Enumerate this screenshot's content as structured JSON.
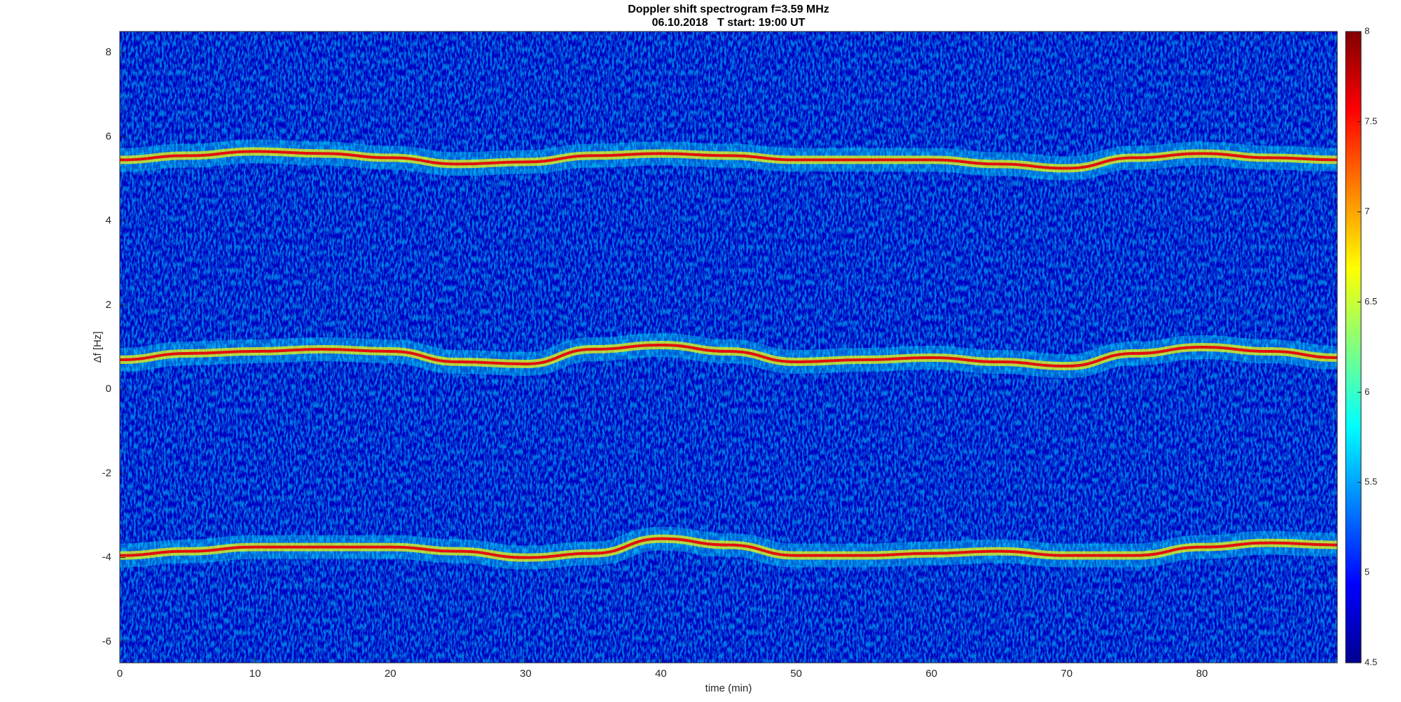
{
  "chart_data": {
    "type": "spectrogram",
    "title": "Doppler shift spectrogram f=3.59 MHz",
    "subtitle": "06.10.2018   T start: 19:00 UT",
    "x_label": "time (min)",
    "y_label": "Δf [Hz]",
    "x": [
      0,
      5,
      10,
      15,
      20,
      25,
      30,
      35,
      40,
      45,
      50,
      55,
      60,
      65,
      70,
      75,
      80,
      85,
      90
    ],
    "series": [
      {
        "color": "#e01010",
        "values": [
          5.45,
          5.55,
          5.65,
          5.6,
          5.5,
          5.35,
          5.4,
          5.55,
          5.6,
          5.55,
          5.45,
          5.45,
          5.45,
          5.35,
          5.25,
          5.5,
          5.6,
          5.5,
          5.45
        ]
      },
      {
        "color": "#e01010",
        "values": [
          0.7,
          0.85,
          0.9,
          0.95,
          0.9,
          0.65,
          0.6,
          0.95,
          1.05,
          0.9,
          0.65,
          0.7,
          0.75,
          0.65,
          0.55,
          0.85,
          1.0,
          0.9,
          0.75
        ]
      },
      {
        "color": "#e01010",
        "values": [
          -3.95,
          -3.85,
          -3.75,
          -3.75,
          -3.75,
          -3.85,
          -4.0,
          -3.9,
          -3.55,
          -3.7,
          -3.95,
          -3.95,
          -3.9,
          -3.85,
          -3.95,
          -3.95,
          -3.75,
          -3.65,
          -3.7
        ]
      }
    ],
    "xlim": [
      0,
      90
    ],
    "xticks": [
      0,
      10,
      20,
      30,
      40,
      50,
      60,
      70,
      80
    ],
    "ylim": [
      -6.5,
      8.5
    ],
    "yticks": [
      -6,
      -4,
      -2,
      0,
      2,
      4,
      6,
      8
    ],
    "colorbar": {
      "lim": [
        4.5,
        8
      ],
      "ticks": [
        4.5,
        5,
        5.5,
        6,
        6.5,
        7,
        7.5,
        8
      ],
      "colormap": [
        "#00008f",
        "#0000ff",
        "#0080ff",
        "#00ffff",
        "#80ff80",
        "#ffff00",
        "#ff8000",
        "#ff0000",
        "#800000"
      ]
    }
  }
}
